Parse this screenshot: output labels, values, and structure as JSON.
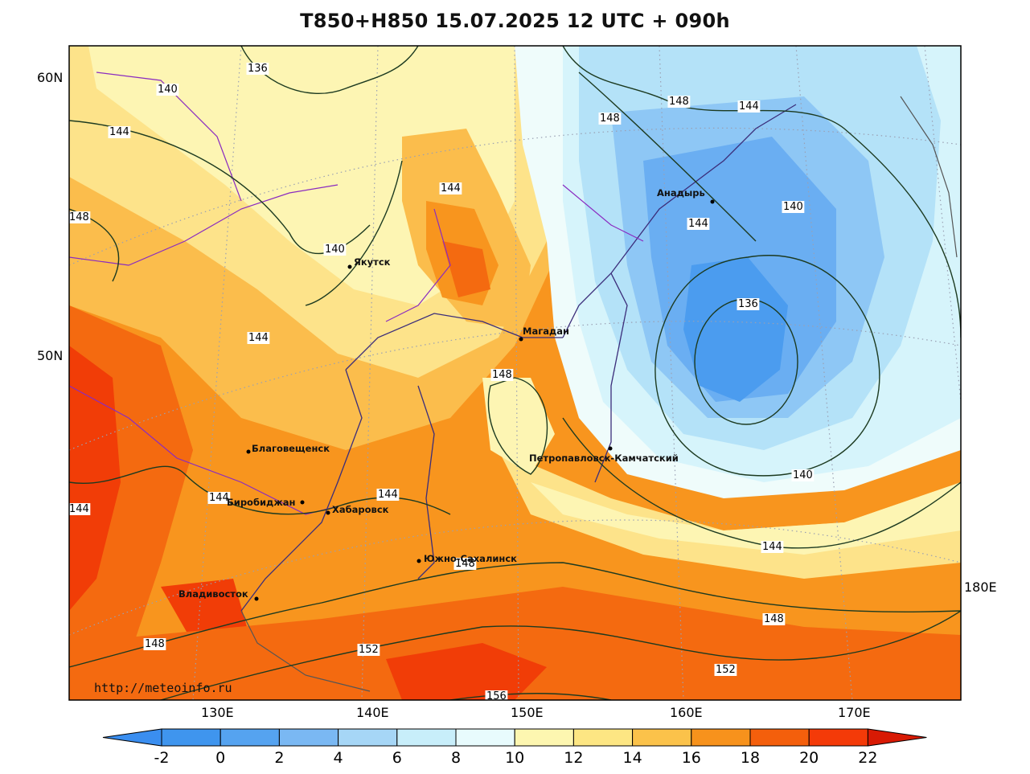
{
  "title": "T850+H850 15.07.2025 12 UTC + 090h",
  "watermark": "http://meteoinfo.ru",
  "map": {
    "lat_labels": [
      "60N",
      "50N"
    ],
    "lon_labels": [
      "130E",
      "140E",
      "150E",
      "160E",
      "170E",
      "180E"
    ],
    "cities": [
      {
        "name": "Якутск"
      },
      {
        "name": "Анадырь"
      },
      {
        "name": "Магадан"
      },
      {
        "name": "Петропавловск-Камчатский"
      },
      {
        "name": "Благовещенск"
      },
      {
        "name": "Биробиджан"
      },
      {
        "name": "Хабаровск"
      },
      {
        "name": "Южно-Сахалинск"
      },
      {
        "name": "Владивосток"
      }
    ],
    "contour_labels": [
      "136",
      "140",
      "144",
      "148",
      "144",
      "148",
      "148",
      "144",
      "144",
      "140",
      "144",
      "144",
      "140",
      "136",
      "148",
      "140",
      "144",
      "144",
      "144",
      "148",
      "148",
      "148",
      "152",
      "152",
      "156",
      "144"
    ]
  },
  "colorbar": {
    "ticks": [
      "-2",
      "0",
      "2",
      "4",
      "6",
      "8",
      "10",
      "12",
      "14",
      "16",
      "18",
      "20",
      "22"
    ],
    "colors": [
      "#3a8ef0",
      "#3f95ee",
      "#55a3f0",
      "#7ab8f3",
      "#a6d6f6",
      "#c8eefa",
      "#e8fbfd",
      "#fdf6b0",
      "#fde683",
      "#fbc24a",
      "#f7921c",
      "#f45f0c",
      "#f43a08",
      "#d81a04"
    ]
  },
  "temperature_colors": {
    "c0": "#4b9cef",
    "c2": "#6aaef2",
    "c4": "#8ec7f5",
    "c6": "#b4e2f8",
    "c8": "#d6f4fb",
    "c10": "#effcfb",
    "c12": "#fdf5b3",
    "c14": "#fde38a",
    "c16": "#fbbd4c",
    "c18": "#f8951e",
    "c20": "#f46a10",
    "c22": "#f13d07"
  }
}
